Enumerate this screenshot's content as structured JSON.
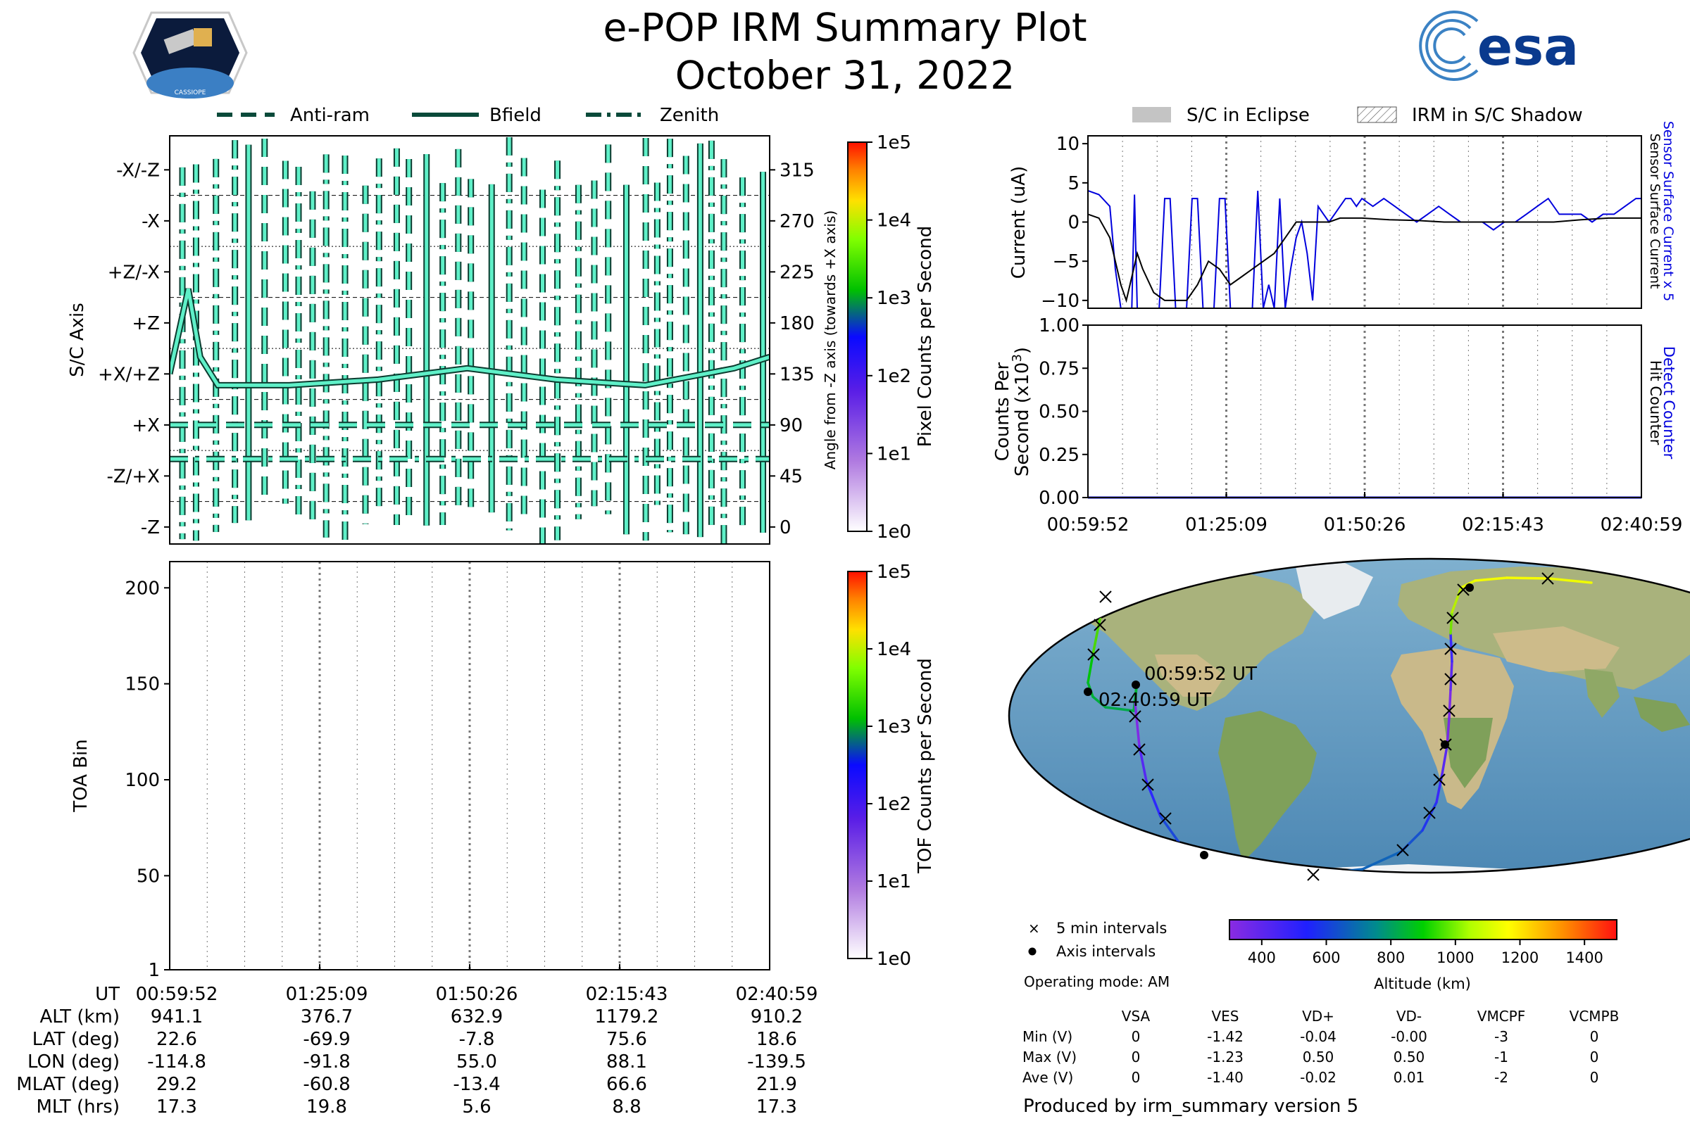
{
  "header": {
    "title": "e-POP IRM Summary Plot",
    "date": "October 31, 2022",
    "mission_logo_text": "CASSIOPE",
    "agency_logo_text": "esa"
  },
  "colors": {
    "cyan_fill": "#5ff0c8",
    "sensor_current": "#0000dd",
    "detect_counter": "#0000dd",
    "track_low": "#8a2be2",
    "track_high": "#ffff00",
    "grid": "#555555"
  },
  "legend_top_left": [
    "Anti-ram",
    "Bfield",
    "Zenith"
  ],
  "legend_top_right": [
    "S/C in Eclipse",
    "IRM in S/C Shadow"
  ],
  "panel_angle": {
    "ylabel": "S/C Axis",
    "axis_labels": [
      "-X/-Z",
      "-X",
      "+Z/-X",
      "+Z",
      "+X/+Z",
      "+X",
      "-Z/+X",
      "-Z"
    ],
    "right_ylabel": "Angle from -Z axis (towards +X axis)",
    "right_ticks": [
      "315",
      "270",
      "225",
      "180",
      "135",
      "90",
      "45",
      "0"
    ],
    "colorbar_label": "Pixel Counts per Second",
    "colorbar_ticks": [
      "1e5",
      "1e4",
      "1e3",
      "1e2",
      "1e1",
      "1e0"
    ]
  },
  "panel_toa": {
    "ylabel": "TOA Bin",
    "yticks": [
      "200",
      "150",
      "100",
      "50",
      "1"
    ],
    "colorbar_label": "TOF Counts per Second",
    "colorbar_ticks": [
      "1e5",
      "1e4",
      "1e3",
      "1e2",
      "1e1",
      "1e0"
    ]
  },
  "panel_current": {
    "ylabel": "Current (uA)",
    "yticks": [
      "10",
      "5",
      "0",
      "−5",
      "−10"
    ],
    "right_label_blue": "Sensor Surface Current x 5",
    "right_label_black": "Sensor Surface Current"
  },
  "panel_counts": {
    "ylabel_line1": "Counts Per",
    "ylabel_line2": "Second (x10",
    "ylabel_exp": "3",
    "ylabel_close": ")",
    "yticks": [
      "1.00",
      "0.75",
      "0.50",
      "0.25",
      "0.00"
    ],
    "right_label_blue": "Detect Counter",
    "right_label_black": "Hit Counter"
  },
  "time_ticks": [
    "00:59:52",
    "01:25:09",
    "01:50:26",
    "02:15:43",
    "02:40:59"
  ],
  "ephemeris": {
    "rows": [
      {
        "label": "UT",
        "values": [
          "00:59:52",
          "01:25:09",
          "01:50:26",
          "02:15:43",
          "02:40:59"
        ]
      },
      {
        "label": "ALT (km)",
        "values": [
          "941.1",
          "376.7",
          "632.9",
          "1179.2",
          "910.2"
        ]
      },
      {
        "label": "LAT (deg)",
        "values": [
          "22.6",
          "-69.9",
          "-7.8",
          "75.6",
          "18.6"
        ]
      },
      {
        "label": "LON (deg)",
        "values": [
          "-114.8",
          "-91.8",
          "55.0",
          "88.1",
          "-139.5"
        ]
      },
      {
        "label": "MLAT (deg)",
        "values": [
          "29.2",
          "-60.8",
          "-13.4",
          "66.6",
          "21.9"
        ]
      },
      {
        "label": "MLT (hrs)",
        "values": [
          "17.3",
          "19.8",
          "5.6",
          "8.8",
          "17.3"
        ]
      }
    ]
  },
  "map": {
    "start_label": "00:59:52 UT",
    "end_label": "02:40:59 UT",
    "legend_5min": "5 min intervals",
    "legend_axis": "Axis intervals",
    "operating_mode": "Operating mode: AM",
    "altitude_label": "Altitude (km)",
    "altitude_ticks": [
      "400",
      "600",
      "800",
      "1000",
      "1200",
      "1400"
    ]
  },
  "voltages": {
    "columns": [
      "VSA",
      "VES",
      "VD+",
      "VD-",
      "VMCPF",
      "VCMPB"
    ],
    "rows": [
      {
        "label": "Min (V)",
        "values": [
          "0",
          "-1.42",
          "-0.04",
          "-0.00",
          "-3",
          "0"
        ]
      },
      {
        "label": "Max (V)",
        "values": [
          "0",
          "-1.23",
          "0.50",
          "0.50",
          "-1",
          "0"
        ]
      },
      {
        "label": "Ave (V)",
        "values": [
          "0",
          "-1.40",
          "-0.02",
          "0.01",
          "-2",
          "0"
        ]
      }
    ]
  },
  "footer": "Produced by irm_summary version 5",
  "chart_data": [
    {
      "type": "line",
      "name_ref": "panel_angle",
      "y_unit": "angle from -Z axis (deg)",
      "ylim": [
        -15,
        345
      ],
      "series": [
        {
          "name": "Bfield",
          "style": "solid",
          "x": [
            "00:59:52",
            "01:03:00",
            "01:05:00",
            "01:08:00",
            "01:20:00",
            "01:35:00",
            "01:50:00",
            "02:05:00",
            "02:20:00",
            "02:35:00",
            "02:40:59"
          ],
          "values": [
            135,
            210,
            150,
            125,
            125,
            130,
            140,
            130,
            125,
            140,
            150
          ]
        },
        {
          "name": "Anti-ram",
          "style": "dashed",
          "note_free": true,
          "x": [
            "00:59:52",
            "02:40:59"
          ],
          "values": [
            90,
            90
          ]
        },
        {
          "name": "Zenith",
          "style": "dash-dot",
          "x": [
            "00:59:52",
            "02:40:59"
          ],
          "values": [
            60,
            60
          ]
        }
      ]
    },
    {
      "type": "heatmap",
      "name_ref": "panel_toa",
      "ylim": [
        1,
        210
      ],
      "values": []
    },
    {
      "type": "line",
      "name_ref": "panel_current",
      "ylim": [
        -11,
        11
      ],
      "x_range": [
        "00:59:52",
        "02:40:59"
      ],
      "series": [
        {
          "name": "Sensor Surface Current x 5",
          "color": "#0000dd",
          "t": [
            0,
            2,
            4,
            5,
            6,
            7,
            8,
            8.5,
            9,
            10,
            11,
            12,
            13,
            14,
            15,
            16,
            17,
            18,
            19,
            20,
            21,
            22,
            23,
            24,
            25,
            26,
            27,
            28,
            29,
            30,
            31,
            32,
            33,
            34,
            35,
            36,
            37,
            38,
            39,
            40,
            41,
            42,
            43,
            44,
            45,
            46,
            47,
            48,
            49,
            50,
            52,
            54,
            56,
            58,
            60,
            62,
            64,
            66,
            68,
            70,
            72,
            74,
            76,
            78,
            80,
            82,
            84,
            86,
            88,
            90,
            92,
            94,
            96,
            98,
            100,
            101
          ],
          "values": [
            4,
            3.5,
            2,
            -6,
            -11,
            -11,
            -11,
            3.5,
            -11,
            -11,
            -11,
            -11,
            -11,
            3,
            3,
            -11,
            -11,
            -11,
            3,
            3,
            -11,
            -11,
            -11,
            3,
            3,
            -11,
            -11,
            -11,
            -11,
            -11,
            4,
            -11,
            -8,
            -11,
            3,
            -11,
            -6,
            -2,
            0,
            -4,
            -10,
            2,
            1,
            0,
            1,
            2,
            3,
            3,
            2,
            3,
            2,
            3,
            2,
            1,
            0,
            1,
            2,
            1,
            0,
            0,
            0,
            -1,
            0,
            0,
            1,
            2,
            3,
            1,
            1,
            1,
            0,
            1,
            1,
            2,
            3,
            3
          ]
        },
        {
          "name": "Sensor Surface Current",
          "color": "#000000",
          "t": [
            0,
            2,
            4,
            5,
            6,
            7,
            8,
            9,
            10,
            12,
            14,
            16,
            18,
            20,
            22,
            24,
            26,
            28,
            30,
            32,
            34,
            36,
            38,
            40,
            42,
            44,
            46,
            48,
            50,
            55,
            60,
            65,
            70,
            75,
            80,
            85,
            90,
            95,
            101
          ],
          "values": [
            1,
            0.5,
            -2,
            -5,
            -8,
            -10,
            -7,
            -4,
            -6,
            -9,
            -10,
            -10,
            -10,
            -8,
            -5,
            -6,
            -8,
            -7,
            -6,
            -5,
            -4,
            -2,
            0,
            0,
            0,
            0,
            0.5,
            0.5,
            0.5,
            0.3,
            0.2,
            0,
            0,
            0,
            0,
            0,
            0.3,
            0.5,
            0.5
          ]
        }
      ]
    },
    {
      "type": "line",
      "name_ref": "panel_counts",
      "ylim": [
        0,
        1
      ],
      "series": [
        {
          "name": "Detect Counter",
          "color": "#0000dd",
          "values": [
            0,
            0
          ]
        },
        {
          "name": "Hit Counter",
          "color": "#000000",
          "values": [
            0,
            0
          ]
        }
      ]
    }
  ]
}
